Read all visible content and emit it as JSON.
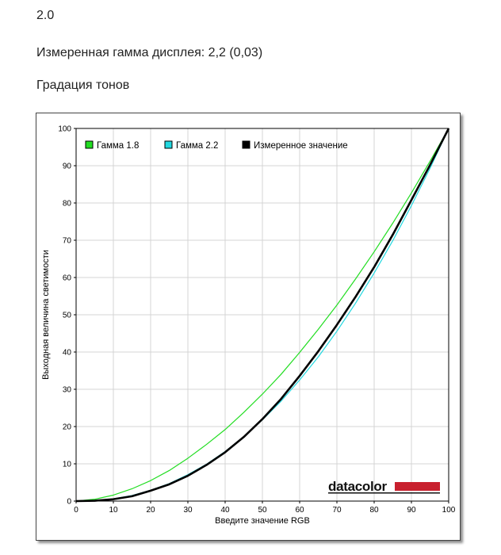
{
  "page": {
    "version": "2.0",
    "measured_gamma_label": "Измеренная гамма дисплея: 2,2 (0,03)",
    "section_title": "Градация тонов"
  },
  "logo": {
    "text": "datacolor",
    "bar_color": "#c8202e"
  },
  "chart_data": {
    "type": "line",
    "title": "",
    "xlabel": "Введите значение RGB",
    "ylabel": "Выходная величина светимости",
    "xlim": [
      0,
      100
    ],
    "ylim": [
      0,
      100
    ],
    "xticks": [
      0,
      10,
      20,
      30,
      40,
      50,
      60,
      70,
      80,
      90,
      100
    ],
    "yticks": [
      0,
      10,
      20,
      30,
      40,
      50,
      60,
      70,
      80,
      90,
      100
    ],
    "grid": true,
    "legend_position": "top-left",
    "x": [
      0,
      5,
      10,
      15,
      20,
      25,
      30,
      35,
      40,
      45,
      50,
      55,
      60,
      65,
      70,
      75,
      80,
      85,
      90,
      95,
      100
    ],
    "series": [
      {
        "name": "Гамма 1.8",
        "color": "#22dd22",
        "values": [
          0,
          0.5,
          1.6,
          3.3,
          5.5,
          8.2,
          11.5,
          15.2,
          19.2,
          23.8,
          28.7,
          34.0,
          39.9,
          46.1,
          52.6,
          59.6,
          66.9,
          74.6,
          82.7,
          91.2,
          100
        ]
      },
      {
        "name": "Гамма 2.2",
        "color": "#22d8e0",
        "values": [
          0,
          0.1,
          0.6,
          1.5,
          2.9,
          4.7,
          7.1,
          9.9,
          13.3,
          17.3,
          21.8,
          26.8,
          32.5,
          38.7,
          45.6,
          53.1,
          61.2,
          69.9,
          79.3,
          89.3,
          100
        ]
      },
      {
        "name": "Измеренное значение",
        "color": "#000000",
        "values": [
          0,
          0.1,
          0.5,
          1.3,
          2.8,
          4.5,
          6.8,
          9.7,
          13.1,
          17.2,
          22.0,
          27.4,
          33.6,
          40.2,
          47.3,
          54.8,
          62.8,
          71.5,
          80.8,
          90.2,
          100
        ]
      }
    ]
  }
}
